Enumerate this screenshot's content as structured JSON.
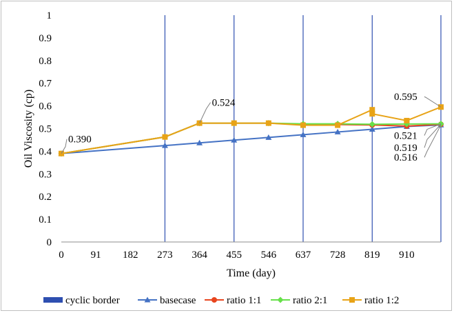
{
  "chart_data": {
    "type": "line",
    "xlabel": "Time (day)",
    "ylabel": "Oil Viscosity (cp)",
    "ylim": [
      0,
      1
    ],
    "y_ticks": [
      "0",
      "0.1",
      "0.2",
      "0.3",
      "0.4",
      "0.5",
      "0.6",
      "0.7",
      "0.8",
      "0.9",
      "1"
    ],
    "x_tick_labels": [
      "0",
      "91",
      "182",
      "273",
      "364",
      "455",
      "546",
      "637",
      "728",
      "819",
      "910"
    ],
    "xlim": [
      0,
      1000
    ],
    "grid": false,
    "legend_position": "bottom",
    "cyclic_borders": [
      273,
      455,
      637,
      819,
      1000
    ],
    "series": [
      {
        "name": "basecase",
        "color": "#4472C4",
        "marker": "triangle",
        "x": [
          0,
          273,
          364,
          455,
          546,
          637,
          728,
          819,
          910,
          1000
        ],
        "y": [
          0.39,
          0.425,
          0.437,
          0.449,
          0.461,
          0.473,
          0.485,
          0.497,
          0.509,
          0.516
        ]
      },
      {
        "name": "ratio 1:1",
        "color": "#E8451E",
        "marker": "circle",
        "x": [
          0,
          273,
          364,
          455,
          546,
          637,
          728,
          819,
          910,
          1000
        ],
        "y": [
          0.39,
          0.463,
          0.524,
          0.524,
          0.524,
          0.518,
          0.518,
          0.516,
          0.511,
          0.519
        ]
      },
      {
        "name": "ratio 2:1",
        "color": "#66E04A",
        "marker": "diamond",
        "x": [
          0,
          273,
          364,
          455,
          546,
          637,
          728,
          819,
          910,
          1000
        ],
        "y": [
          0.39,
          0.463,
          0.524,
          0.524,
          0.524,
          0.521,
          0.521,
          0.519,
          0.52,
          0.521
        ]
      },
      {
        "name": "ratio 1:2",
        "color": "#E8A317",
        "marker": "square",
        "x": [
          0,
          273,
          364,
          455,
          546,
          637,
          728,
          819,
          819,
          910,
          910,
          1000
        ],
        "y": [
          0.39,
          0.463,
          0.524,
          0.524,
          0.524,
          0.515,
          0.515,
          0.583,
          0.565,
          0.535,
          0.535,
          0.595
        ]
      }
    ],
    "annotations": [
      {
        "text": "0.390",
        "x": 0,
        "y": 0.39
      },
      {
        "text": "0.524",
        "x": 364,
        "y": 0.524
      },
      {
        "text": "0.595",
        "x": 1000,
        "y": 0.595
      },
      {
        "text": "0.521",
        "x": 1000,
        "y": 0.521
      },
      {
        "text": "0.519",
        "x": 1000,
        "y": 0.519
      },
      {
        "text": "0.516",
        "x": 1000,
        "y": 0.516
      }
    ],
    "legend": [
      {
        "label": "cyclic border",
        "type": "bar",
        "color": "#2E4FB0"
      },
      {
        "label": "basecase",
        "type": "line",
        "color": "#4472C4",
        "marker": "triangle"
      },
      {
        "label": "ratio 1:1",
        "type": "line",
        "color": "#E8451E",
        "marker": "circle"
      },
      {
        "label": "ratio 2:1",
        "type": "line",
        "color": "#66E04A",
        "marker": "diamond"
      },
      {
        "label": "ratio 1:2",
        "type": "line",
        "color": "#E8A317",
        "marker": "square"
      }
    ]
  }
}
